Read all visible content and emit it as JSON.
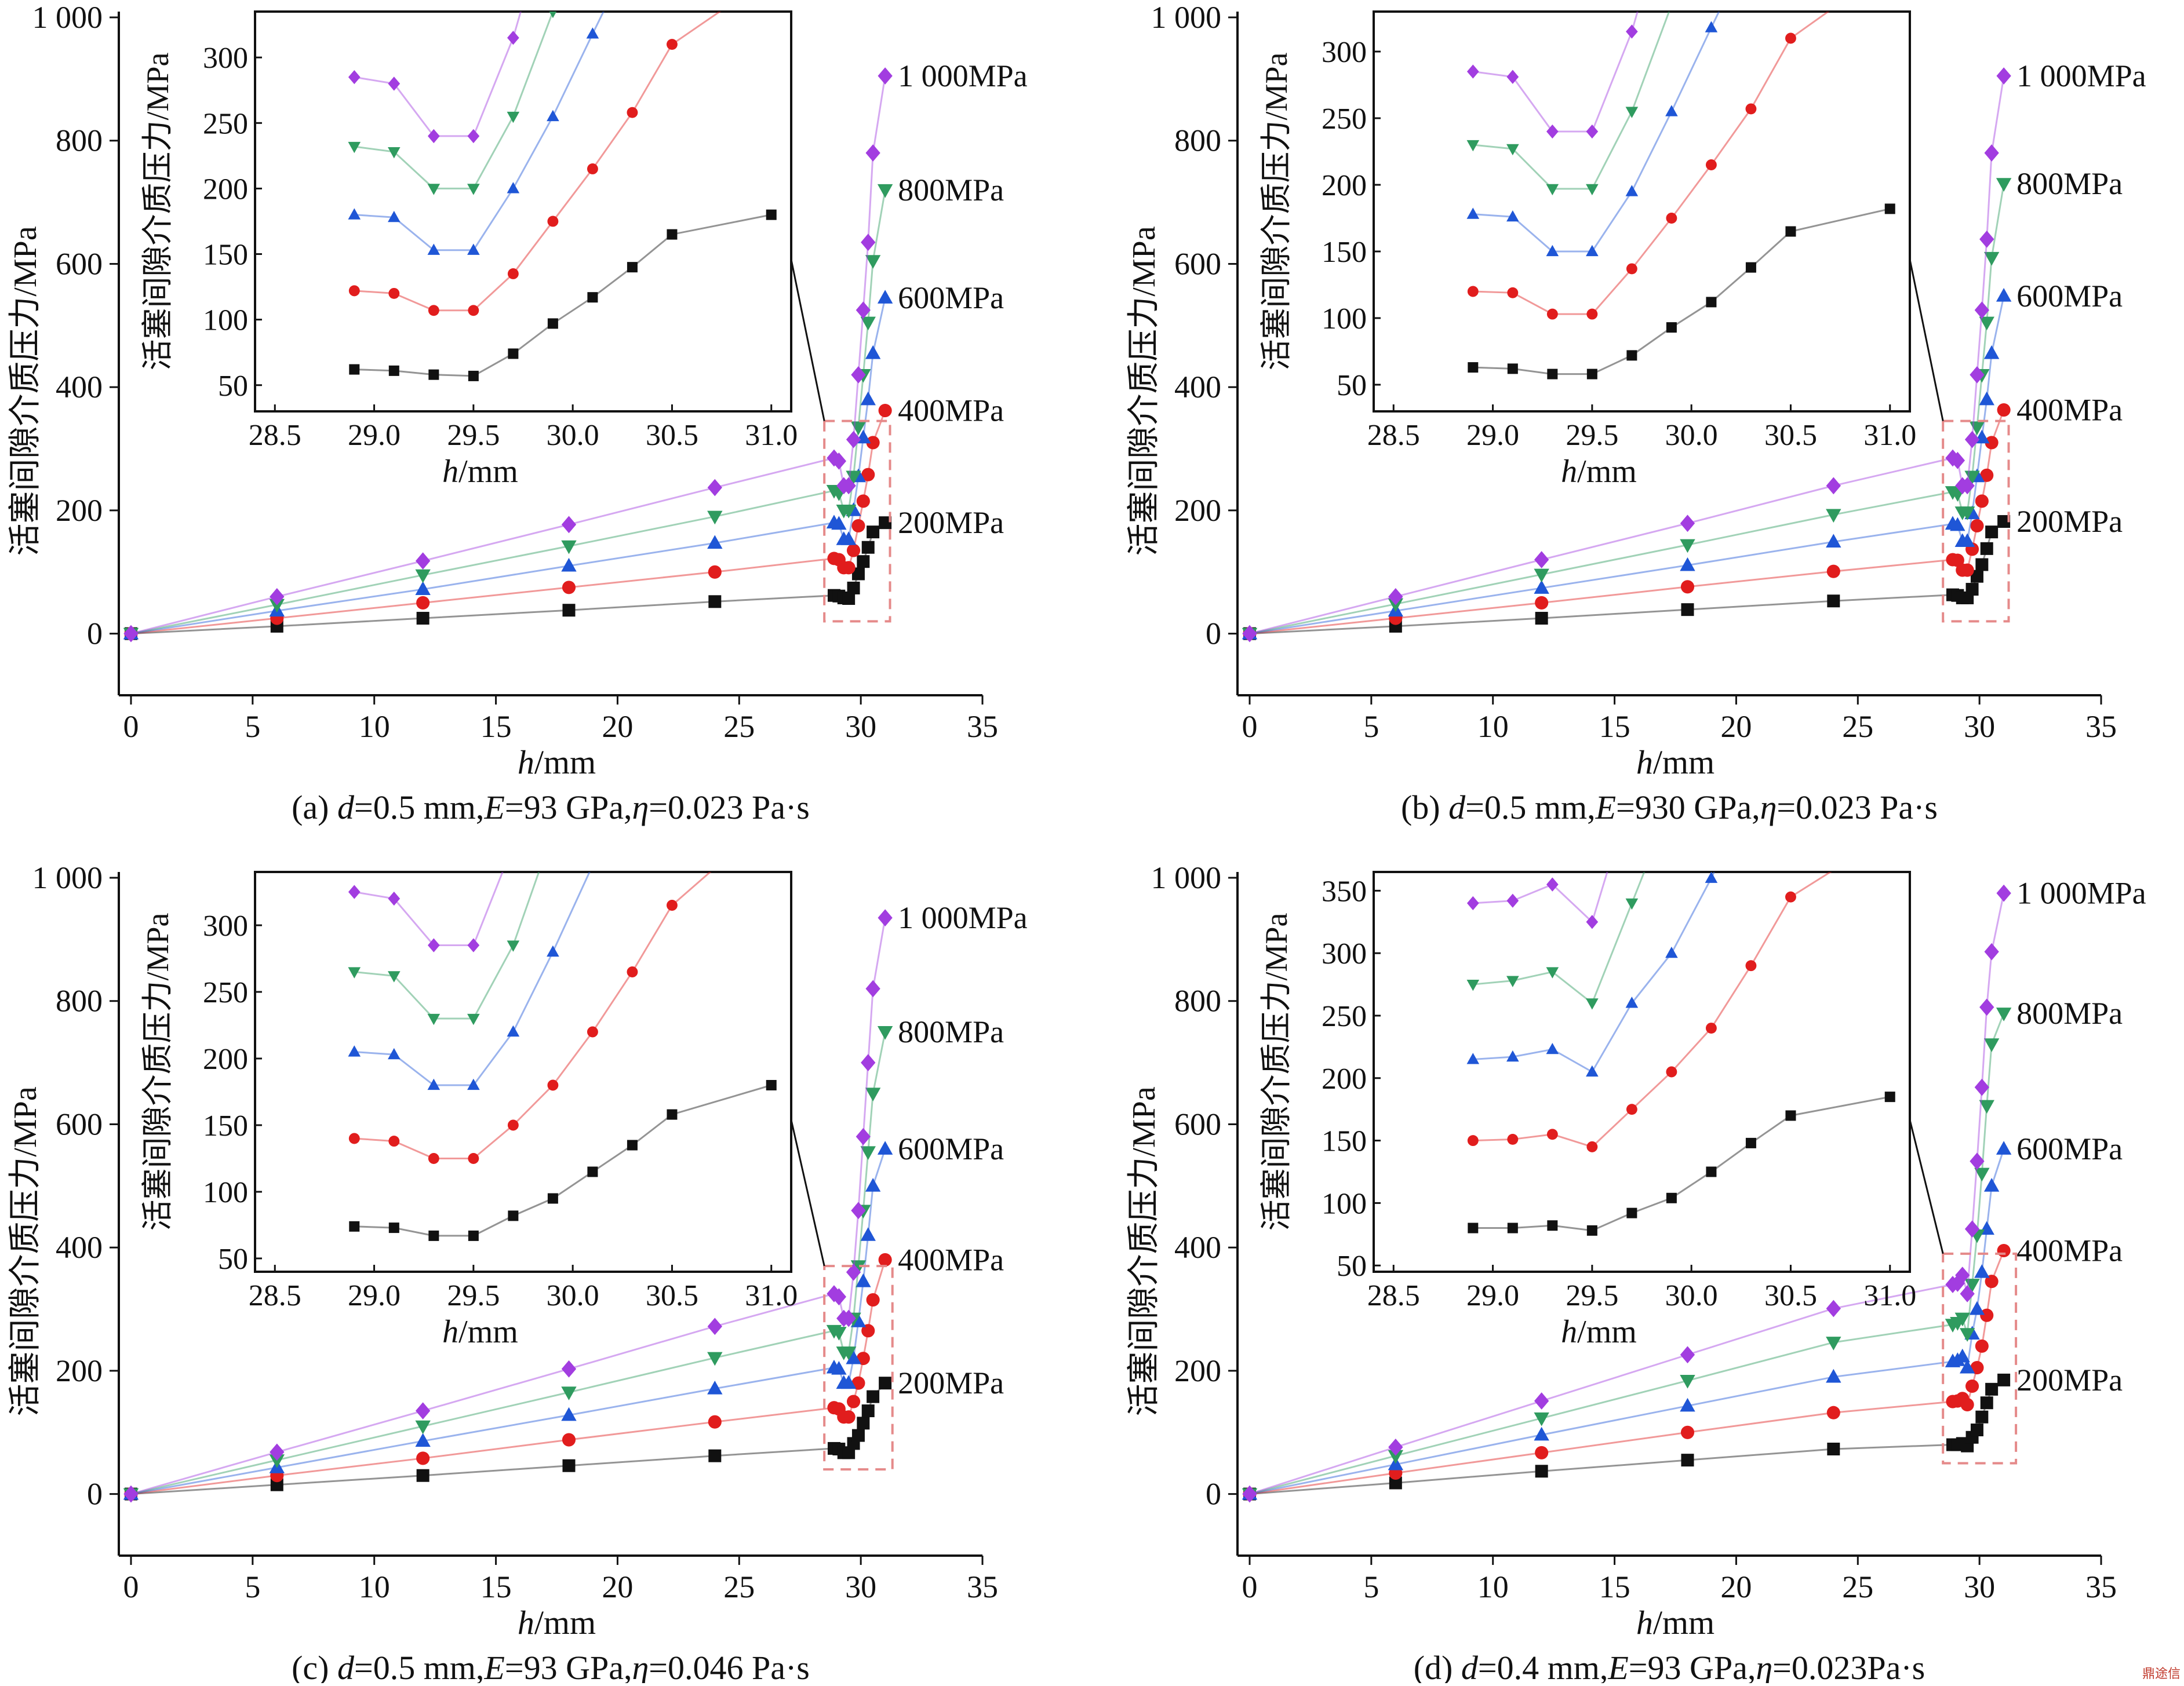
{
  "figure": {
    "watermark": "鼎途信"
  },
  "colors": {
    "s200": "#111111",
    "s400": "#e11d1d",
    "s600": "#1f56d6",
    "s800": "#2f9b5f",
    "s1000": "#a23de0",
    "box": "#e58a8a"
  },
  "chart_data": [
    {
      "type": "line",
      "caption_html": "(a) <tspan font-style=\"italic\">d</tspan>=0.5 mm,<tspan font-style=\"italic\">E</tspan>=93 GPa,<tspan font-style=\"italic\">η</tspan>=0.023 Pa·s",
      "xlabel": "h/mm",
      "ylabel": "活塞间隙介质压力/MPa",
      "xlim": [
        -0.5,
        35
      ],
      "ylim": [
        -100,
        1000
      ],
      "xticks": [
        "0",
        "5",
        "10",
        "15",
        "20",
        "25",
        "30",
        "35"
      ],
      "yticks": [
        "0",
        "200",
        "400",
        "600",
        "800",
        "1 000"
      ],
      "inset": {
        "xlim": [
          28.4,
          31.1
        ],
        "ylim": [
          30,
          335
        ],
        "xticks": [
          "28.5",
          "29.0",
          "29.5",
          "30.0",
          "30.5",
          "31.0"
        ],
        "yticks": [
          "50",
          "100",
          "150",
          "200",
          "250",
          "300"
        ],
        "box_xlim": [
          28.5,
          31.2
        ],
        "box_ylim": [
          20,
          345
        ]
      },
      "series": [
        {
          "name": "200MPa",
          "marker": "square",
          "color_key": "s200",
          "x": [
            0,
            6,
            12,
            18,
            24,
            28.9,
            29.1,
            29.3,
            29.5,
            29.7,
            29.9,
            30.1,
            30.3,
            30.5,
            31.0
          ],
          "y": [
            0,
            12,
            25,
            38,
            52,
            62,
            61,
            58,
            57,
            74,
            97,
            117,
            140,
            165,
            180
          ]
        },
        {
          "name": "400MPa",
          "marker": "circle",
          "color_key": "s400",
          "x": [
            0,
            6,
            12,
            18,
            24,
            28.9,
            29.1,
            29.3,
            29.5,
            29.7,
            29.9,
            30.1,
            30.3,
            30.5,
            31.0
          ],
          "y": [
            0,
            25,
            50,
            75,
            100,
            122,
            120,
            107,
            107,
            135,
            175,
            215,
            258,
            310,
            362
          ]
        },
        {
          "name": "600MPa",
          "marker": "triangle-up",
          "color_key": "s600",
          "x": [
            0,
            6,
            12,
            18,
            24,
            28.9,
            29.1,
            29.3,
            29.5,
            29.7,
            29.9,
            30.1,
            30.3,
            30.5,
            31.0
          ],
          "y": [
            0,
            37,
            72,
            110,
            147,
            180,
            178,
            153,
            153,
            200,
            255,
            318,
            380,
            455,
            545
          ]
        },
        {
          "name": "800MPa",
          "marker": "triangle-down",
          "color_key": "s800",
          "x": [
            0,
            6,
            12,
            18,
            24,
            28.9,
            29.1,
            29.3,
            29.5,
            29.7,
            29.9,
            30.1,
            30.3,
            30.5,
            31.0
          ],
          "y": [
            0,
            47,
            95,
            142,
            190,
            232,
            228,
            200,
            200,
            255,
            335,
            420,
            505,
            605,
            720
          ]
        },
        {
          "name": "1 000MPa",
          "marker": "diamond",
          "color_key": "s1000",
          "x": [
            0,
            6,
            12,
            18,
            24,
            28.9,
            29.1,
            29.3,
            29.5,
            29.7,
            29.9,
            30.1,
            30.3,
            30.5,
            31.0
          ],
          "y": [
            0,
            60,
            118,
            177,
            237,
            285,
            280,
            240,
            240,
            315,
            420,
            525,
            635,
            780,
            905
          ]
        }
      ]
    },
    {
      "type": "line",
      "caption_html": "(b) <tspan font-style=\"italic\">d</tspan>=0.5 mm,<tspan font-style=\"italic\">E</tspan>=930 GPa,<tspan font-style=\"italic\">η</tspan>=0.023 Pa·s",
      "xlabel": "h/mm",
      "ylabel": "活塞间隙介质压力/MPa",
      "xlim": [
        -0.5,
        35
      ],
      "ylim": [
        -100,
        1000
      ],
      "xticks": [
        "0",
        "5",
        "10",
        "15",
        "20",
        "25",
        "30",
        "35"
      ],
      "yticks": [
        "0",
        "200",
        "400",
        "600",
        "800",
        "1 000"
      ],
      "inset": {
        "xlim": [
          28.4,
          31.1
        ],
        "ylim": [
          30,
          330
        ],
        "xticks": [
          "28.5",
          "29.0",
          "29.5",
          "30.0",
          "30.5",
          "31.0"
        ],
        "yticks": [
          "50",
          "100",
          "150",
          "200",
          "250",
          "300"
        ],
        "box_xlim": [
          28.5,
          31.2
        ],
        "box_ylim": [
          20,
          345
        ]
      },
      "series": [
        {
          "name": "200MPa",
          "marker": "square",
          "color_key": "s200",
          "x": [
            0,
            6,
            12,
            18,
            24,
            28.9,
            29.1,
            29.3,
            29.5,
            29.7,
            29.9,
            30.1,
            30.3,
            30.5,
            31.0
          ],
          "y": [
            0,
            12,
            25,
            39,
            53,
            63,
            62,
            58,
            58,
            72,
            93,
            112,
            138,
            165,
            182
          ]
        },
        {
          "name": "400MPa",
          "marker": "circle",
          "color_key": "s400",
          "x": [
            0,
            6,
            12,
            18,
            24,
            28.9,
            29.1,
            29.3,
            29.5,
            29.7,
            29.9,
            30.1,
            30.3,
            30.5,
            31.0
          ],
          "y": [
            0,
            25,
            50,
            76,
            101,
            120,
            119,
            103,
            103,
            137,
            175,
            215,
            257,
            310,
            363
          ]
        },
        {
          "name": "600MPa",
          "marker": "triangle-up",
          "color_key": "s600",
          "x": [
            0,
            6,
            12,
            18,
            24,
            28.9,
            29.1,
            29.3,
            29.5,
            29.7,
            29.9,
            30.1,
            30.3,
            30.5,
            31.0
          ],
          "y": [
            0,
            37,
            74,
            111,
            149,
            178,
            176,
            150,
            150,
            195,
            255,
            318,
            380,
            455,
            548
          ]
        },
        {
          "name": "800MPa",
          "marker": "triangle-down",
          "color_key": "s800",
          "x": [
            0,
            6,
            12,
            18,
            24,
            28.9,
            29.1,
            29.3,
            29.5,
            29.7,
            29.9,
            30.1,
            30.3,
            30.5,
            31.0
          ],
          "y": [
            0,
            48,
            96,
            144,
            193,
            230,
            227,
            197,
            197,
            255,
            335,
            420,
            505,
            610,
            730
          ]
        },
        {
          "name": "1 000MPa",
          "marker": "diamond",
          "color_key": "s1000",
          "x": [
            0,
            6,
            12,
            18,
            24,
            28.9,
            29.1,
            29.3,
            29.5,
            29.7,
            29.9,
            30.1,
            30.3,
            30.5,
            31.0
          ],
          "y": [
            0,
            60,
            120,
            179,
            240,
            285,
            281,
            240,
            240,
            315,
            420,
            525,
            640,
            780,
            905
          ]
        }
      ]
    },
    {
      "type": "line",
      "caption_html": "(c) <tspan font-style=\"italic\">d</tspan>=0.5 mm,<tspan font-style=\"italic\">E</tspan>=93 GPa,<tspan font-style=\"italic\">η</tspan>=0.046 Pa·s",
      "xlabel": "h/mm",
      "ylabel": "活塞间隙介质压力/MPa",
      "xlim": [
        -0.5,
        35
      ],
      "ylim": [
        -100,
        1000
      ],
      "xticks": [
        "0",
        "5",
        "10",
        "15",
        "20",
        "25",
        "30",
        "35"
      ],
      "yticks": [
        "0",
        "200",
        "400",
        "600",
        "800",
        "1 000"
      ],
      "inset": {
        "xlim": [
          28.4,
          31.1
        ],
        "ylim": [
          40,
          340
        ],
        "xticks": [
          "28.5",
          "29.0",
          "29.5",
          "30.0",
          "30.5",
          "31.0"
        ],
        "yticks": [
          "50",
          "100",
          "150",
          "200",
          "250",
          "300"
        ],
        "box_xlim": [
          28.5,
          31.3
        ],
        "box_ylim": [
          40,
          370
        ]
      },
      "series": [
        {
          "name": "200MPa",
          "marker": "square",
          "color_key": "s200",
          "x": [
            0,
            6,
            12,
            18,
            24,
            28.9,
            29.1,
            29.3,
            29.5,
            29.7,
            29.9,
            30.1,
            30.3,
            30.5,
            31.0
          ],
          "y": [
            0,
            15,
            30,
            46,
            62,
            74,
            73,
            67,
            67,
            82,
            95,
            115,
            135,
            158,
            180
          ]
        },
        {
          "name": "400MPa",
          "marker": "circle",
          "color_key": "s400",
          "x": [
            0,
            6,
            12,
            18,
            24,
            28.9,
            29.1,
            29.3,
            29.5,
            29.7,
            29.9,
            30.1,
            30.3,
            30.5,
            31.0
          ],
          "y": [
            0,
            30,
            58,
            88,
            117,
            140,
            138,
            125,
            125,
            150,
            180,
            220,
            265,
            315,
            380
          ]
        },
        {
          "name": "600MPa",
          "marker": "triangle-up",
          "color_key": "s600",
          "x": [
            0,
            6,
            12,
            18,
            24,
            28.9,
            29.1,
            29.3,
            29.5,
            29.7,
            29.9,
            30.1,
            30.3,
            30.5,
            31.0
          ],
          "y": [
            0,
            43,
            86,
            128,
            171,
            205,
            203,
            180,
            180,
            220,
            280,
            345,
            420,
            500,
            560
          ]
        },
        {
          "name": "800MPa",
          "marker": "triangle-down",
          "color_key": "s800",
          "x": [
            0,
            6,
            12,
            18,
            24,
            28.9,
            29.1,
            29.3,
            29.5,
            29.7,
            29.9,
            30.1,
            30.3,
            30.5,
            31.0
          ],
          "y": [
            0,
            55,
            110,
            165,
            221,
            265,
            262,
            230,
            230,
            285,
            370,
            460,
            555,
            650,
            750
          ]
        },
        {
          "name": "1 000MPa",
          "marker": "diamond",
          "color_key": "s1000",
          "x": [
            0,
            6,
            12,
            18,
            24,
            28.9,
            29.1,
            29.3,
            29.5,
            29.7,
            29.9,
            30.1,
            30.3,
            30.5,
            31.0
          ],
          "y": [
            0,
            68,
            135,
            203,
            272,
            325,
            320,
            285,
            285,
            360,
            460,
            580,
            700,
            820,
            935
          ]
        }
      ]
    },
    {
      "type": "line",
      "caption_html": "(d) <tspan font-style=\"italic\">d</tspan>=0.4 mm,<tspan font-style=\"italic\">E</tspan>=93 GPa,<tspan font-style=\"italic\">η</tspan>=0.023Pa·s",
      "xlabel": "h/mm",
      "ylabel": "活塞间隙介质压力/MPa",
      "xlim": [
        -0.5,
        35
      ],
      "ylim": [
        -100,
        1000
      ],
      "xticks": [
        "0",
        "5",
        "10",
        "15",
        "20",
        "25",
        "30",
        "35"
      ],
      "yticks": [
        "0",
        "200",
        "400",
        "600",
        "800",
        "1 000"
      ],
      "inset": {
        "xlim": [
          28.4,
          31.1
        ],
        "ylim": [
          45,
          365
        ],
        "xticks": [
          "28.5",
          "29.0",
          "29.5",
          "30.0",
          "30.5",
          "31.0"
        ],
        "yticks": [
          "50",
          "100",
          "150",
          "200",
          "250",
          "300",
          "350"
        ],
        "box_xlim": [
          28.5,
          31.5
        ],
        "box_ylim": [
          50,
          390
        ]
      },
      "series": [
        {
          "name": "200MPa",
          "marker": "square",
          "color_key": "s200",
          "x": [
            0,
            6,
            12,
            18,
            24,
            28.9,
            29.1,
            29.3,
            29.5,
            29.7,
            29.9,
            30.1,
            30.3,
            30.5,
            31.0
          ],
          "y": [
            0,
            18,
            37,
            55,
            73,
            80,
            80,
            82,
            78,
            92,
            104,
            125,
            148,
            170,
            185
          ]
        },
        {
          "name": "400MPa",
          "marker": "circle",
          "color_key": "s400",
          "x": [
            0,
            6,
            12,
            18,
            24,
            28.9,
            29.1,
            29.3,
            29.5,
            29.7,
            29.9,
            30.1,
            30.3,
            30.5,
            31.0
          ],
          "y": [
            0,
            34,
            67,
            100,
            132,
            150,
            151,
            155,
            145,
            175,
            205,
            240,
            290,
            345,
            395
          ]
        },
        {
          "name": "600MPa",
          "marker": "triangle-up",
          "color_key": "s600",
          "x": [
            0,
            6,
            12,
            18,
            24,
            28.9,
            29.1,
            29.3,
            29.5,
            29.7,
            29.9,
            30.1,
            30.3,
            30.5,
            31.0
          ],
          "y": [
            0,
            48,
            96,
            143,
            190,
            215,
            217,
            223,
            205,
            260,
            300,
            360,
            430,
            500,
            560
          ]
        },
        {
          "name": "800MPa",
          "marker": "triangle-down",
          "color_key": "s800",
          "x": [
            0,
            6,
            12,
            18,
            24,
            28.9,
            29.1,
            29.3,
            29.5,
            29.7,
            29.9,
            30.1,
            30.3,
            30.5,
            31.0
          ],
          "y": [
            0,
            62,
            123,
            184,
            246,
            275,
            278,
            285,
            260,
            340,
            420,
            520,
            630,
            730,
            780
          ]
        },
        {
          "name": "1 000MPa",
          "marker": "diamond",
          "color_key": "s1000",
          "x": [
            0,
            6,
            12,
            18,
            24,
            28.9,
            29.1,
            29.3,
            29.5,
            29.7,
            29.9,
            30.1,
            30.3,
            30.5,
            31.0
          ],
          "y": [
            0,
            76,
            151,
            226,
            301,
            340,
            342,
            355,
            325,
            430,
            540,
            660,
            790,
            880,
            975
          ]
        }
      ]
    }
  ]
}
